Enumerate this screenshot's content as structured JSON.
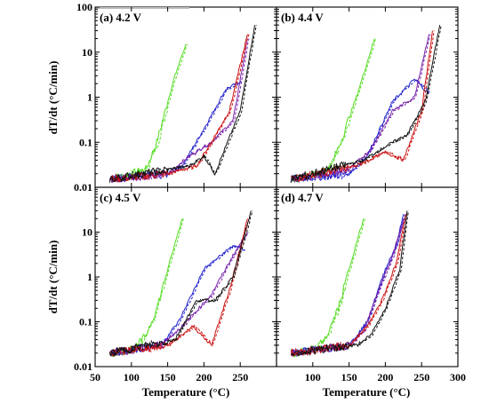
{
  "figure": {
    "ylabel": "dT/dt (°C/min)",
    "xlabel": "Temperature (°C)",
    "x_ticks": [
      "50",
      "100",
      "150",
      "200",
      "250",
      "300"
    ],
    "y_ticks": [
      "0.01",
      "0.1",
      "1",
      "10",
      "100"
    ]
  },
  "colors": {
    "green": "#55dd22",
    "blue": "#2222cc",
    "purple": "#7722aa",
    "red": "#cc1111",
    "black": "#111111"
  },
  "chart_data": [
    {
      "type": "line",
      "title": "(a) 4.2 V",
      "xlim": [
        50,
        300
      ],
      "ylim": [
        0.01,
        100
      ],
      "yscale": "log",
      "series": [
        {
          "color": "green",
          "x": [
            70,
            100,
            120,
            135,
            150,
            160,
            175
          ],
          "y": [
            0.015,
            0.02,
            0.025,
            0.1,
            0.8,
            3,
            15
          ]
        },
        {
          "color": "blue",
          "x": [
            70,
            150,
            170,
            200,
            230,
            250
          ],
          "y": [
            0.015,
            0.02,
            0.03,
            0.2,
            1.5,
            2.2
          ]
        },
        {
          "color": "purple",
          "x": [
            70,
            150,
            180,
            210,
            240,
            260
          ],
          "y": [
            0.015,
            0.02,
            0.05,
            0.1,
            0.3,
            20
          ]
        },
        {
          "color": "red",
          "x": [
            70,
            150,
            190,
            210,
            235,
            260
          ],
          "y": [
            0.015,
            0.02,
            0.03,
            0.1,
            0.5,
            25
          ]
        },
        {
          "color": "black",
          "x": [
            70,
            180,
            200,
            215,
            250,
            270
          ],
          "y": [
            0.015,
            0.03,
            0.05,
            0.02,
            0.5,
            40
          ]
        }
      ]
    },
    {
      "type": "line",
      "title": "(b) 4.4 V",
      "xlim": [
        50,
        300
      ],
      "ylim": [
        0.01,
        100
      ],
      "yscale": "log",
      "series": [
        {
          "color": "green",
          "x": [
            70,
            110,
            125,
            140,
            160,
            185
          ],
          "y": [
            0.015,
            0.02,
            0.03,
            0.12,
            1.0,
            20
          ]
        },
        {
          "color": "blue",
          "x": [
            70,
            150,
            175,
            210,
            240,
            260
          ],
          "y": [
            0.015,
            0.02,
            0.05,
            0.8,
            2.5,
            1.2
          ]
        },
        {
          "color": "purple",
          "x": [
            70,
            150,
            180,
            210,
            240,
            260
          ],
          "y": [
            0.015,
            0.025,
            0.07,
            0.5,
            1.0,
            25
          ]
        },
        {
          "color": "red",
          "x": [
            70,
            160,
            200,
            225,
            250,
            265
          ],
          "y": [
            0.015,
            0.03,
            0.06,
            0.04,
            0.5,
            30
          ]
        },
        {
          "color": "black",
          "x": [
            70,
            170,
            200,
            230,
            255,
            275
          ],
          "y": [
            0.015,
            0.04,
            0.08,
            0.15,
            0.8,
            40
          ]
        }
      ]
    },
    {
      "type": "line",
      "title": "(c) 4.5 V",
      "xlim": [
        50,
        300
      ],
      "ylim": [
        0.01,
        100
      ],
      "yscale": "log",
      "series": [
        {
          "color": "green",
          "x": [
            70,
            105,
            120,
            135,
            150,
            170
          ],
          "y": [
            0.02,
            0.025,
            0.05,
            0.2,
            1.5,
            20
          ]
        },
        {
          "color": "blue",
          "x": [
            70,
            140,
            165,
            200,
            240,
            255
          ],
          "y": [
            0.02,
            0.03,
            0.1,
            1.5,
            5,
            4
          ]
        },
        {
          "color": "purple",
          "x": [
            70,
            140,
            170,
            210,
            240,
            260
          ],
          "y": [
            0.02,
            0.03,
            0.08,
            0.4,
            3,
            10
          ]
        },
        {
          "color": "red",
          "x": [
            70,
            150,
            185,
            210,
            235,
            260
          ],
          "y": [
            0.02,
            0.03,
            0.08,
            0.03,
            0.5,
            20
          ]
        },
        {
          "color": "black",
          "x": [
            70,
            160,
            190,
            215,
            240,
            265
          ],
          "y": [
            0.02,
            0.04,
            0.3,
            0.3,
            1.0,
            30
          ]
        }
      ]
    },
    {
      "type": "line",
      "title": "(d) 4.7 V",
      "xlim": [
        50,
        300
      ],
      "ylim": [
        0.01,
        100
      ],
      "yscale": "log",
      "series": [
        {
          "color": "green",
          "x": [
            70,
            105,
            120,
            135,
            150,
            170
          ],
          "y": [
            0.02,
            0.025,
            0.05,
            0.2,
            1.5,
            20
          ]
        },
        {
          "color": "blue",
          "x": [
            70,
            150,
            175,
            200,
            215,
            225
          ],
          "y": [
            0.02,
            0.03,
            0.1,
            1.5,
            5,
            25
          ]
        },
        {
          "color": "purple",
          "x": [
            70,
            150,
            170,
            190,
            210,
            225
          ],
          "y": [
            0.02,
            0.03,
            0.06,
            0.5,
            3,
            20
          ]
        },
        {
          "color": "red",
          "x": [
            70,
            150,
            175,
            195,
            215,
            228
          ],
          "y": [
            0.02,
            0.03,
            0.08,
            0.3,
            2,
            25
          ]
        },
        {
          "color": "black",
          "x": [
            70,
            160,
            180,
            200,
            220,
            230
          ],
          "y": [
            0.02,
            0.03,
            0.05,
            0.2,
            1.5,
            30
          ]
        }
      ]
    }
  ]
}
